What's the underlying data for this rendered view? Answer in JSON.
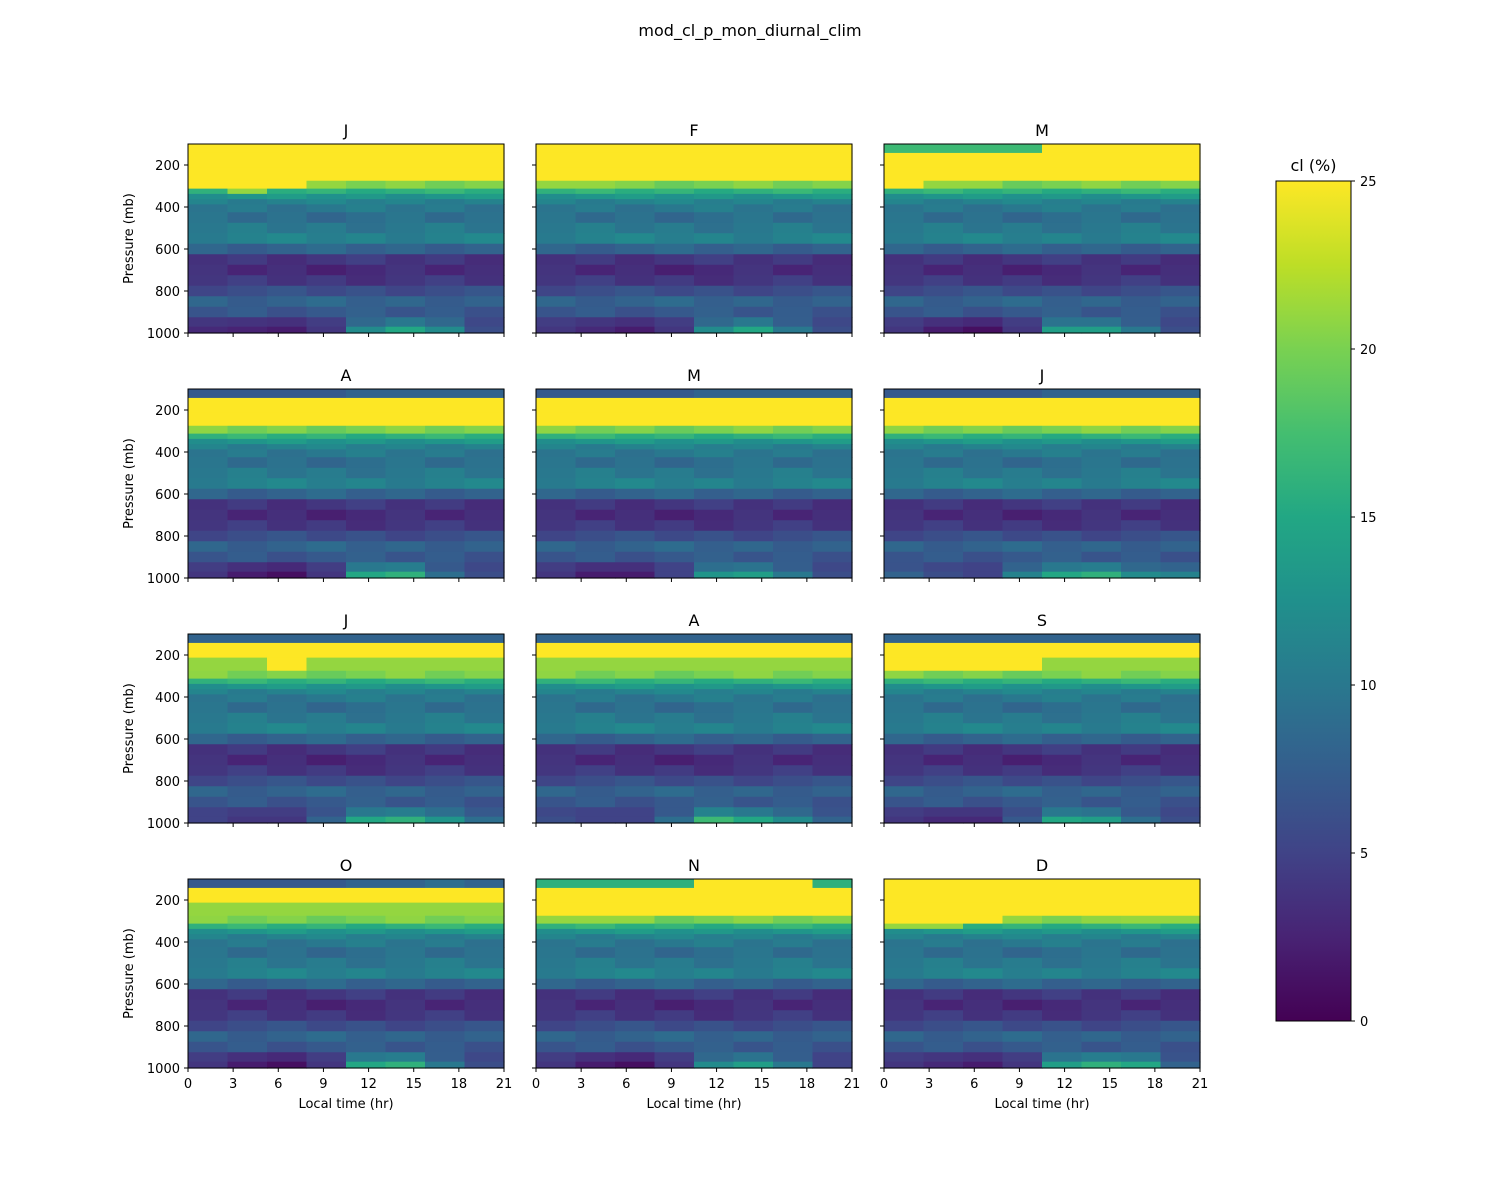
{
  "figure": {
    "title": "mod_cl_p_mon_diurnal_clim"
  },
  "chart_data": {
    "type": "heatmap",
    "title": "mod_cl_p_mon_diurnal_clim",
    "xlabel": "Local time (hr)",
    "ylabel": "Pressure (mb)",
    "x": [
      0,
      3,
      6,
      9,
      12,
      15,
      18,
      21
    ],
    "xticks": [
      "0",
      "3",
      "6",
      "9",
      "12",
      "15",
      "18",
      "21"
    ],
    "yticks": [
      "200",
      "400",
      "600",
      "800",
      "1000"
    ],
    "ylim": [
      1000,
      100
    ],
    "colormap": "viridis",
    "colorbar": {
      "label": "cl (%)",
      "min": 0,
      "max": 25,
      "ticks": [
        "0",
        "5",
        "10",
        "15",
        "20",
        "25"
      ]
    },
    "panel_titles": [
      "J",
      "F",
      "M",
      "A",
      "M",
      "J",
      "J",
      "A",
      "S",
      "O",
      "N",
      "D"
    ],
    "profile_levels_mb": [
      110,
      175,
      250,
      300,
      325,
      350,
      375,
      400,
      450,
      500,
      550,
      600,
      650,
      700,
      750,
      800,
      850,
      900,
      950,
      990
    ],
    "base_profile_pct": [
      25,
      25,
      25,
      20,
      16,
      13,
      11,
      10,
      9,
      10,
      11,
      8,
      4,
      3,
      4,
      6,
      8,
      7,
      5,
      4
    ],
    "panels": [
      {
        "title": "J",
        "top": [
          25,
          25,
          25,
          25,
          25,
          25,
          25,
          25
        ],
        "cloudtop_mb": [
          325,
          330,
          325,
          305,
          285,
          285,
          295,
          300
        ],
        "low_cloud": [
          3,
          2.5,
          2,
          4,
          12,
          15,
          12,
          6
        ]
      },
      {
        "title": "F",
        "top": [
          25,
          25,
          25,
          25,
          25,
          25,
          25,
          25
        ],
        "cloudtop_mb": [
          310,
          305,
          300,
          295,
          285,
          285,
          290,
          300
        ],
        "low_cloud": [
          4,
          3,
          2,
          4,
          12,
          15,
          10,
          6
        ]
      },
      {
        "title": "M",
        "top": [
          17,
          17,
          17,
          17,
          25,
          25,
          25,
          25
        ],
        "cloudtop_mb": [
          325,
          320,
          310,
          300,
          285,
          285,
          290,
          300
        ],
        "low_cloud": [
          4,
          2,
          1,
          4,
          14,
          14,
          10,
          6
        ]
      },
      {
        "title": "A",
        "top": [
          7,
          7,
          7,
          7,
          8,
          8,
          8,
          8
        ],
        "cloudtop_mb": [
          285,
          290,
          295,
          295,
          285,
          285,
          285,
          290
        ],
        "low_cloud": [
          4,
          2,
          1,
          4,
          15,
          16,
          9,
          6
        ]
      },
      {
        "title": "M",
        "top": [
          7,
          7,
          7,
          7,
          8,
          8,
          8,
          8
        ],
        "cloudtop_mb": [
          280,
          285,
          285,
          285,
          280,
          280,
          280,
          285
        ],
        "low_cloud": [
          4,
          2,
          2,
          5,
          13,
          14,
          10,
          6
        ]
      },
      {
        "title": "J",
        "top": [
          7,
          7,
          7,
          7,
          8,
          8,
          8,
          8
        ],
        "cloudtop_mb": [
          280,
          285,
          285,
          280,
          275,
          275,
          280,
          280
        ],
        "low_cloud": [
          8,
          6,
          5,
          11,
          15,
          16,
          12,
          11
        ]
      },
      {
        "title": "J",
        "top": [
          8,
          8,
          8,
          8,
          8,
          8,
          8,
          8
        ],
        "cloudtop_mb": [
          265,
          270,
          275,
          270,
          265,
          265,
          265,
          265
        ],
        "low_cloud": [
          5,
          4,
          4,
          8,
          15,
          16,
          13,
          9
        ]
      },
      {
        "title": "A",
        "top": [
          8,
          8,
          8,
          8,
          8,
          8,
          8,
          8
        ],
        "cloudtop_mb": [
          265,
          265,
          265,
          265,
          265,
          265,
          265,
          265
        ],
        "low_cloud": [
          6,
          5,
          5,
          9,
          17,
          15,
          12,
          8
        ]
      },
      {
        "title": "S",
        "top": [
          8,
          8,
          8,
          8,
          8,
          8,
          8,
          8
        ],
        "cloudtop_mb": [
          275,
          290,
          290,
          280,
          270,
          270,
          270,
          270
        ],
        "low_cloud": [
          4,
          3,
          3,
          7,
          15,
          14,
          9,
          6
        ]
      },
      {
        "title": "O",
        "top": [
          7,
          7,
          7,
          7,
          8,
          8,
          9,
          8
        ],
        "cloudtop_mb": [
          255,
          265,
          265,
          260,
          255,
          255,
          255,
          255
        ],
        "low_cloud": [
          4,
          2,
          1,
          4,
          15,
          16,
          10,
          6
        ]
      },
      {
        "title": "N",
        "top": [
          16,
          16,
          16,
          16,
          25,
          25,
          25,
          16
        ],
        "cloudtop_mb": [
          305,
          305,
          305,
          300,
          290,
          290,
          290,
          300
        ],
        "low_cloud": [
          4,
          2,
          1,
          4,
          12,
          14,
          10,
          5
        ]
      },
      {
        "title": "D",
        "top": [
          25,
          25,
          25,
          25,
          25,
          25,
          25,
          25
        ],
        "cloudtop_mb": [
          335,
          330,
          325,
          310,
          300,
          300,
          310,
          310
        ],
        "low_cloud": [
          4,
          3,
          2,
          4,
          14,
          16,
          15,
          8
        ]
      }
    ]
  }
}
